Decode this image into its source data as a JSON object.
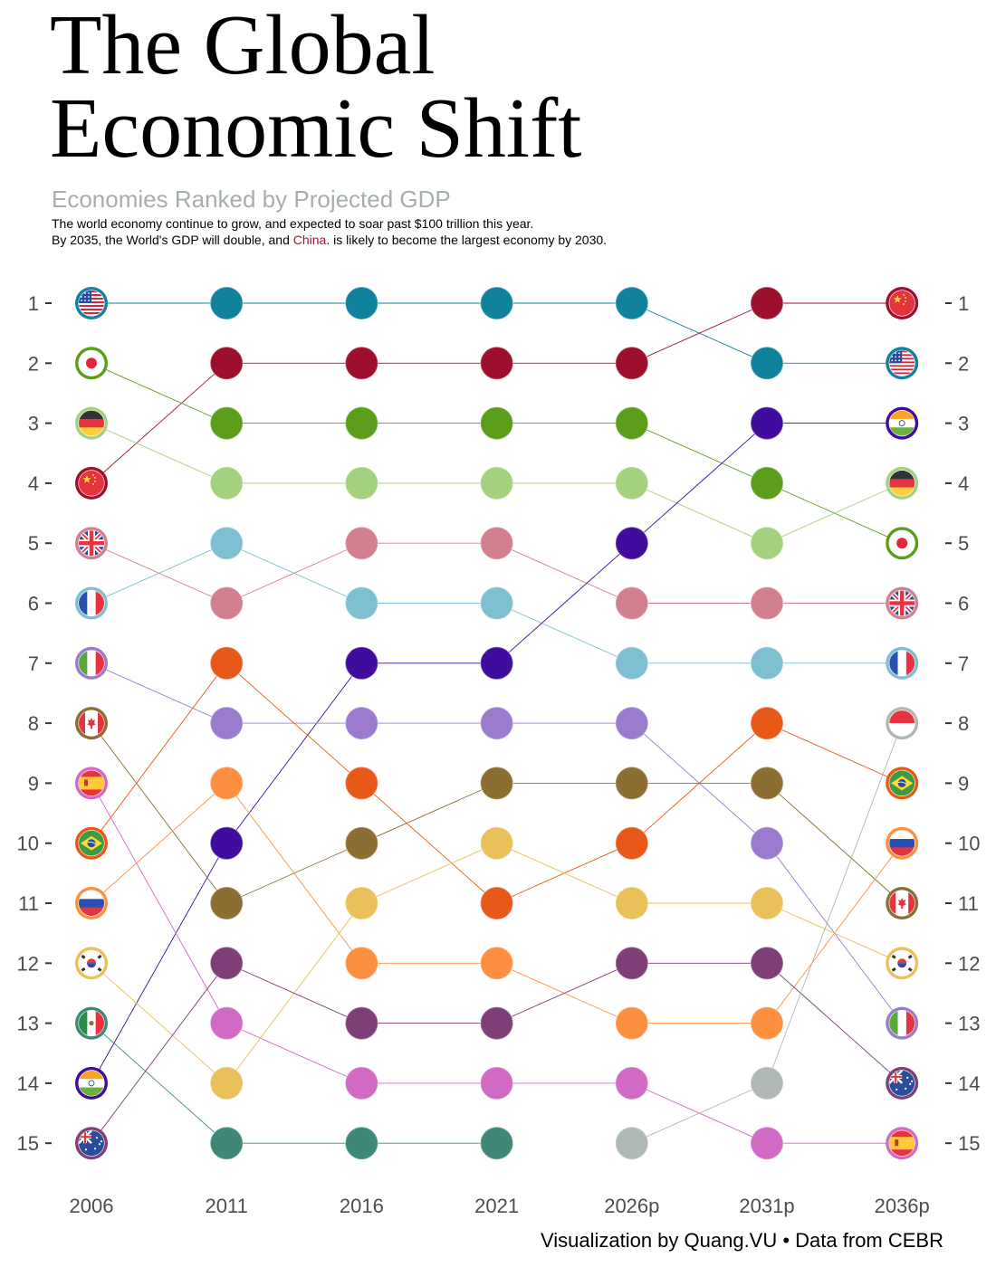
{
  "title": "The Global\nEconomic Shift",
  "subtitle": "Economies Ranked by Projected GDP",
  "description": {
    "line1": "The world economy continue to grow, and expected to soar past $100 trillion this year.",
    "line2_before": "By 2035, the World's GDP will double, and ",
    "line2_highlight": "China",
    "line2_after": ". is likely to become the largest economy by 2030."
  },
  "caption": "Visualization by Quang.VU • Data from CEBR",
  "colors": {
    "US": "#11829c",
    "China": "#9e0f2e",
    "Japan": "#5a9e1b",
    "Germany": "#a3d17f",
    "UK": "#d27f8f",
    "France": "#7ec0d1",
    "India": "#3f0c9e",
    "Italy": "#9a7bce",
    "Canada": "#8c6d32",
    "Spain": "#d06ac2",
    "Brazil": "#e85818",
    "Russia": "#fd9040",
    "Korea": "#e9c05a",
    "Mexico": "#3f8877",
    "Australia": "#7d3f76",
    "Indonesia": "#b0b8b3"
  },
  "chart_data": {
    "type": "bump",
    "x": [
      "2006",
      "2011",
      "2016",
      "2021",
      "2026p",
      "2031p",
      "2036p"
    ],
    "y_ticks": [
      "1",
      "2",
      "3",
      "4",
      "5",
      "6",
      "7",
      "8",
      "9",
      "10",
      "11",
      "12",
      "13",
      "14",
      "15"
    ],
    "ylim": [
      1,
      15
    ],
    "series": [
      {
        "name": "US",
        "icon": "us-flag-icon",
        "ranks": [
          1,
          1,
          1,
          1,
          1,
          2,
          2
        ]
      },
      {
        "name": "China",
        "icon": "china-flag-icon",
        "ranks": [
          4,
          2,
          2,
          2,
          2,
          1,
          1
        ]
      },
      {
        "name": "Japan",
        "icon": "japan-flag-icon",
        "ranks": [
          2,
          3,
          3,
          3,
          3,
          4,
          5
        ]
      },
      {
        "name": "Germany",
        "icon": "germany-flag-icon",
        "ranks": [
          3,
          4,
          4,
          4,
          4,
          5,
          4
        ]
      },
      {
        "name": "UK",
        "icon": "uk-flag-icon",
        "ranks": [
          5,
          6,
          5,
          5,
          6,
          6,
          6
        ]
      },
      {
        "name": "France",
        "icon": "france-flag-icon",
        "ranks": [
          6,
          5,
          6,
          6,
          7,
          7,
          7
        ]
      },
      {
        "name": "India",
        "icon": "india-flag-icon",
        "ranks": [
          14,
          10,
          7,
          7,
          5,
          3,
          3
        ]
      },
      {
        "name": "Italy",
        "icon": "italy-flag-icon",
        "ranks": [
          7,
          8,
          8,
          8,
          8,
          10,
          13
        ]
      },
      {
        "name": "Canada",
        "icon": "canada-flag-icon",
        "ranks": [
          8,
          11,
          10,
          9,
          9,
          9,
          11
        ]
      },
      {
        "name": "Spain",
        "icon": "spain-flag-icon",
        "ranks": [
          9,
          13,
          14,
          14,
          14,
          15,
          15
        ]
      },
      {
        "name": "Brazil",
        "icon": "brazil-flag-icon",
        "ranks": [
          10,
          7,
          9,
          11,
          10,
          8,
          9
        ]
      },
      {
        "name": "Russia",
        "icon": "russia-flag-icon",
        "ranks": [
          11,
          9,
          12,
          12,
          13,
          13,
          10
        ]
      },
      {
        "name": "Korea",
        "icon": "korea-flag-icon",
        "ranks": [
          12,
          14,
          11,
          10,
          11,
          11,
          12
        ]
      },
      {
        "name": "Mexico",
        "icon": "mexico-flag-icon",
        "ranks": [
          13,
          15,
          15,
          15,
          null,
          null,
          null
        ]
      },
      {
        "name": "Australia",
        "icon": "australia-flag-icon",
        "ranks": [
          15,
          12,
          13,
          13,
          12,
          12,
          14
        ]
      },
      {
        "name": "Indonesia",
        "icon": "indonesia-flag-icon",
        "ranks": [
          null,
          null,
          null,
          null,
          15,
          14,
          8
        ]
      }
    ]
  }
}
